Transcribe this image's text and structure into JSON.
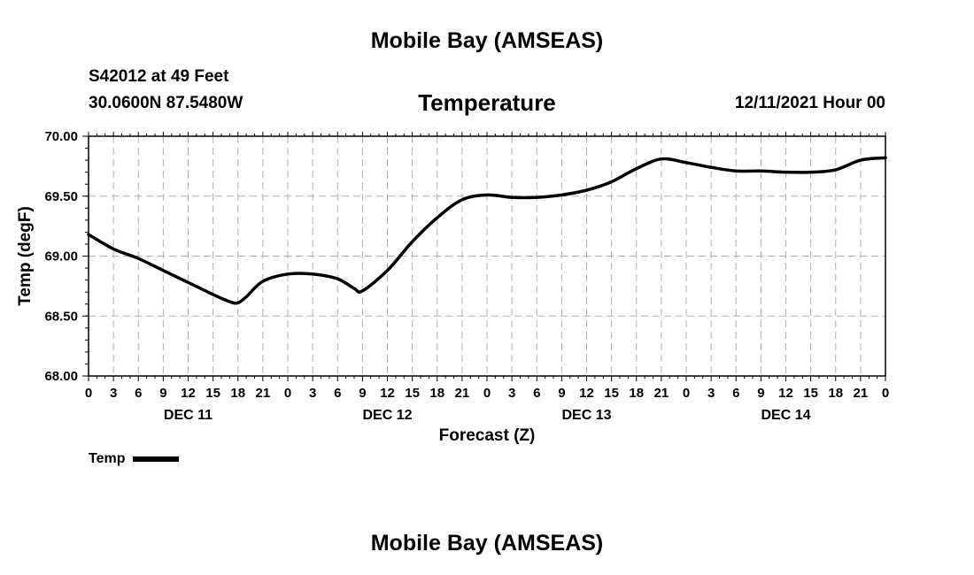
{
  "header": {
    "title": "Mobile Bay (AMSEAS)",
    "station": "S42012 at 49 Feet",
    "coords": "30.0600N  87.5480W",
    "subtitle": "Temperature",
    "datetime": "12/11/2021 Hour 00"
  },
  "footer": {
    "title": "Mobile Bay (AMSEAS)"
  },
  "chart_data": {
    "type": "line",
    "title": "Temperature",
    "xlabel": "Forecast (Z)",
    "ylabel": "Temp (degF)",
    "xlim": [
      0,
      96
    ],
    "ylim": [
      68.0,
      70.0
    ],
    "yticks": [
      "68.00",
      "68.50",
      "69.00",
      "69.50",
      "70.00"
    ],
    "xticks": [
      0,
      3,
      6,
      9,
      12,
      15,
      18,
      21,
      24,
      27,
      30,
      33,
      36,
      39,
      42,
      45,
      48,
      51,
      54,
      57,
      60,
      63,
      66,
      69,
      72,
      75,
      78,
      81,
      84,
      87,
      90,
      93,
      96
    ],
    "xtick_labels": [
      "0",
      "3",
      "6",
      "9",
      "12",
      "15",
      "18",
      "21",
      "0",
      "3",
      "6",
      "9",
      "12",
      "15",
      "18",
      "21",
      "0",
      "3",
      "6",
      "9",
      "12",
      "15",
      "18",
      "21",
      "0",
      "3",
      "6",
      "9",
      "12",
      "15",
      "18",
      "21",
      "0"
    ],
    "day_labels": [
      {
        "x": 12,
        "label": "DEC 11"
      },
      {
        "x": 36,
        "label": "DEC 12"
      },
      {
        "x": 60,
        "label": "DEC 13"
      },
      {
        "x": 84,
        "label": "DEC 14"
      }
    ],
    "grid": true,
    "legend_position": "bottom-left",
    "series": [
      {
        "name": "Temp",
        "color": "#000000",
        "x": [
          0,
          3,
          6,
          9,
          12,
          15,
          17,
          18,
          19,
          21,
          24,
          27,
          30,
          32,
          33,
          36,
          39,
          42,
          45,
          48,
          51,
          54,
          57,
          60,
          63,
          66,
          69,
          72,
          75,
          78,
          81,
          84,
          87,
          90,
          93,
          96
        ],
        "y": [
          69.18,
          69.06,
          68.98,
          68.88,
          68.78,
          68.68,
          68.62,
          68.61,
          68.66,
          68.79,
          68.85,
          68.85,
          68.81,
          68.73,
          68.71,
          68.88,
          69.12,
          69.32,
          69.47,
          69.51,
          69.49,
          69.49,
          69.51,
          69.55,
          69.62,
          69.73,
          69.81,
          69.78,
          69.74,
          69.71,
          69.71,
          69.7,
          69.7,
          69.72,
          69.8,
          69.82
        ]
      }
    ]
  },
  "legend": {
    "label": "Temp"
  }
}
